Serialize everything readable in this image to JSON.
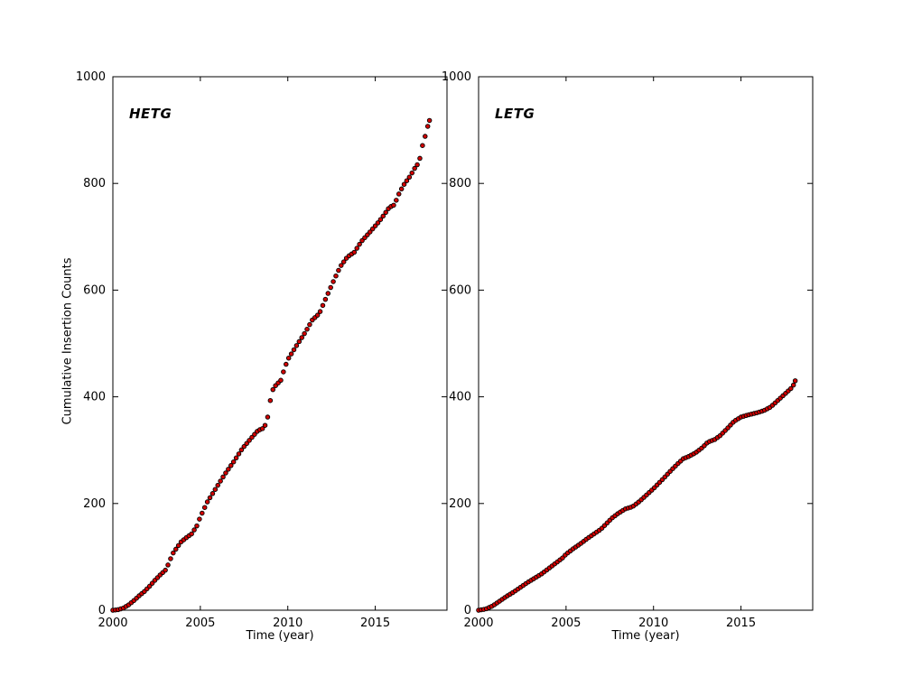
{
  "chart_data": [
    {
      "type": "scatter",
      "title": "HETG",
      "xlabel": "Time (year)",
      "ylabel": "Cumulative Insertion Counts",
      "xlim": [
        2000,
        2019.1
      ],
      "ylim": [
        0,
        1000
      ],
      "x_ticks": [
        2000,
        2005,
        2010,
        2015
      ],
      "y_ticks": [
        0,
        200,
        400,
        600,
        800,
        1000
      ],
      "grid": false,
      "legend": "none",
      "marker": {
        "shape": "circle",
        "fill": "#d40000",
        "edge": "#000000",
        "radius": 2.3
      },
      "points": [
        [
          2000.0,
          0
        ],
        [
          2000.3,
          1
        ],
        [
          2000.6,
          4
        ],
        [
          2000.9,
          10
        ],
        [
          2001.2,
          18
        ],
        [
          2001.5,
          27
        ],
        [
          2001.8,
          35
        ],
        [
          2002.1,
          45
        ],
        [
          2002.4,
          56
        ],
        [
          2002.7,
          66
        ],
        [
          2003.0,
          75
        ],
        [
          2003.2,
          88
        ],
        [
          2003.4,
          105
        ],
        [
          2003.7,
          119
        ],
        [
          2003.9,
          128
        ],
        [
          2004.2,
          136
        ],
        [
          2004.5,
          143
        ],
        [
          2004.8,
          158
        ],
        [
          2005.0,
          175
        ],
        [
          2005.4,
          203
        ],
        [
          2005.9,
          229
        ],
        [
          2006.4,
          255
        ],
        [
          2006.9,
          278
        ],
        [
          2007.4,
          303
        ],
        [
          2008.0,
          326
        ],
        [
          2008.3,
          337
        ],
        [
          2008.6,
          341
        ],
        [
          2008.8,
          352
        ],
        [
          2008.9,
          372
        ],
        [
          2009.0,
          393
        ],
        [
          2009.1,
          411
        ],
        [
          2009.3,
          421
        ],
        [
          2009.6,
          431
        ],
        [
          2009.8,
          452
        ],
        [
          2010.0,
          470
        ],
        [
          2010.5,
          496
        ],
        [
          2011.0,
          521
        ],
        [
          2011.4,
          544
        ],
        [
          2011.8,
          556
        ],
        [
          2012.1,
          579
        ],
        [
          2012.6,
          616
        ],
        [
          2013.0,
          644
        ],
        [
          2013.4,
          662
        ],
        [
          2013.8,
          671
        ],
        [
          2014.2,
          691
        ],
        [
          2014.7,
          709
        ],
        [
          2015.2,
          728
        ],
        [
          2015.5,
          741
        ],
        [
          2015.8,
          755
        ],
        [
          2016.1,
          760
        ],
        [
          2016.3,
          777
        ],
        [
          2016.6,
          796
        ],
        [
          2017.0,
          814
        ],
        [
          2017.3,
          831
        ],
        [
          2017.5,
          839
        ],
        [
          2017.7,
          871
        ],
        [
          2017.9,
          894
        ],
        [
          2018.0,
          907
        ],
        [
          2018.1,
          918
        ]
      ]
    },
    {
      "type": "scatter",
      "title": "LETG",
      "xlabel": "Time (year)",
      "ylabel": "",
      "xlim": [
        2000,
        2019.1
      ],
      "ylim": [
        0,
        1000
      ],
      "x_ticks": [
        2000,
        2005,
        2010,
        2015
      ],
      "y_ticks": [
        0,
        200,
        400,
        600,
        800,
        1000
      ],
      "grid": false,
      "legend": "none",
      "marker": {
        "shape": "circle",
        "fill": "#d40000",
        "edge": "#000000",
        "radius": 2.3
      },
      "points": [
        [
          2000.0,
          0
        ],
        [
          2000.4,
          2
        ],
        [
          2000.8,
          8
        ],
        [
          2001.2,
          17
        ],
        [
          2001.6,
          26
        ],
        [
          2002.0,
          34
        ],
        [
          2002.4,
          43
        ],
        [
          2002.8,
          52
        ],
        [
          2003.2,
          60
        ],
        [
          2003.6,
          68
        ],
        [
          2004.0,
          78
        ],
        [
          2004.4,
          88
        ],
        [
          2004.8,
          98
        ],
        [
          2005.0,
          105
        ],
        [
          2005.4,
          115
        ],
        [
          2005.8,
          124
        ],
        [
          2006.2,
          134
        ],
        [
          2006.6,
          143
        ],
        [
          2007.0,
          152
        ],
        [
          2007.3,
          162
        ],
        [
          2007.6,
          172
        ],
        [
          2008.0,
          182
        ],
        [
          2008.4,
          190
        ],
        [
          2008.8,
          194
        ],
        [
          2009.2,
          204
        ],
        [
          2009.6,
          216
        ],
        [
          2010.0,
          228
        ],
        [
          2010.3,
          238
        ],
        [
          2010.6,
          248
        ],
        [
          2011.0,
          262
        ],
        [
          2011.4,
          275
        ],
        [
          2011.7,
          284
        ],
        [
          2012.0,
          288
        ],
        [
          2012.4,
          295
        ],
        [
          2012.8,
          305
        ],
        [
          2013.1,
          315
        ],
        [
          2013.5,
          320
        ],
        [
          2013.8,
          327
        ],
        [
          2014.2,
          340
        ],
        [
          2014.6,
          354
        ],
        [
          2015.0,
          362
        ],
        [
          2015.4,
          366
        ],
        [
          2015.9,
          370
        ],
        [
          2016.3,
          374
        ],
        [
          2016.7,
          381
        ],
        [
          2017.0,
          390
        ],
        [
          2017.3,
          399
        ],
        [
          2017.6,
          408
        ],
        [
          2017.9,
          417
        ],
        [
          2018.0,
          422
        ],
        [
          2018.1,
          430
        ]
      ]
    }
  ],
  "style": {
    "background": "#ffffff",
    "spine_color": "#000000",
    "text_color": "#000000",
    "marker_fill": "#d40000",
    "marker_edge": "#000000"
  },
  "render": {
    "marker_step_years": 0.15,
    "tick_length": 5
  }
}
